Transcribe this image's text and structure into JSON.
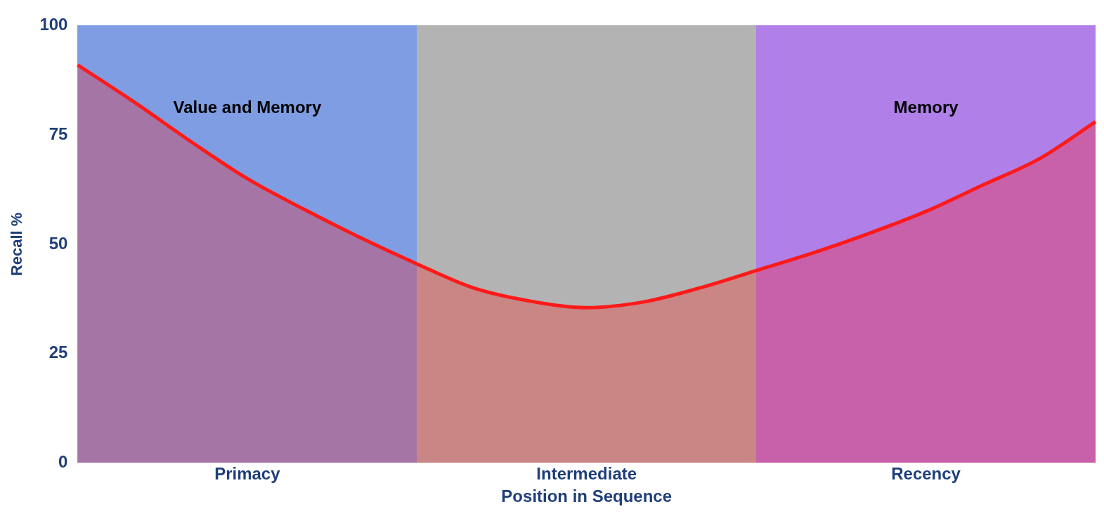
{
  "chart_data": {
    "type": "area",
    "xlabel": "Position in Sequence",
    "ylabel": "Recall %",
    "categories": [
      null,
      null,
      null,
      "Primacy",
      null,
      null,
      null,
      null,
      null,
      "Intermediate",
      null,
      null,
      null,
      null,
      null,
      "Recency",
      null,
      null,
      null
    ],
    "ylim": [
      0,
      100
    ],
    "yticks": [
      0,
      25,
      50,
      75,
      100
    ],
    "series": [
      {
        "color": "#ff1a1a",
        "values": [
          91,
          82.5,
          73.5,
          65,
          58,
          51.5,
          45.5,
          40,
          37,
          35.5,
          36.8,
          40,
          44,
          48,
          52.5,
          57.5,
          63.5,
          69.5,
          78
        ]
      }
    ],
    "annotations": [
      "Value and Memory",
      "Memory"
    ],
    "grid": false,
    "legend": false
  }
}
